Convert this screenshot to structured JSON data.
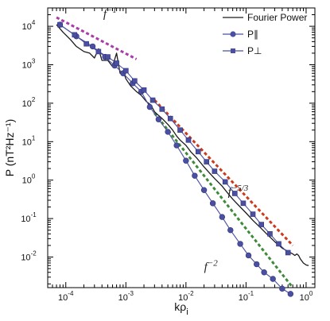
{
  "chart_data": {
    "type": "line",
    "xlabel": "kρ",
    "xlabel_sub": "i",
    "ylabel": "P (nT²Hz⁻¹)",
    "x_scale": "log",
    "y_scale": "log",
    "xlim": [
      5e-05,
      1.4
    ],
    "ylim": [
      0.0016,
      30000
    ],
    "x_tick_labels": [
      {
        "value": 0.0001,
        "base": "10",
        "exp": "-4"
      },
      {
        "value": 0.001,
        "base": "10",
        "exp": "-3"
      },
      {
        "value": 0.01,
        "base": "10",
        "exp": "-2"
      },
      {
        "value": 0.1,
        "base": "10",
        "exp": "-1"
      },
      {
        "value": 1,
        "base": "10",
        "exp": "0"
      }
    ],
    "y_tick_labels": [
      {
        "value": 10000,
        "base": "10",
        "exp": "4"
      },
      {
        "value": 1000,
        "base": "10",
        "exp": "3"
      },
      {
        "value": 100,
        "base": "10",
        "exp": "2"
      },
      {
        "value": 10,
        "base": "10",
        "exp": "1"
      },
      {
        "value": 1,
        "base": "10",
        "exp": "0"
      },
      {
        "value": 0.1,
        "base": "10",
        "exp": "-1"
      },
      {
        "value": 0.01,
        "base": "10",
        "exp": "-2"
      }
    ],
    "legend_position": "top-right",
    "series": [
      {
        "name": "Fourier Power",
        "color": "#1a1a1a",
        "marker": "none",
        "x": [
          7e-05,
          9e-05,
          0.00012,
          0.00015,
          0.0002,
          0.00025,
          0.0003,
          0.00035,
          0.0004,
          0.0005,
          0.0006,
          0.0007,
          0.0008,
          0.0009,
          0.001,
          0.0012,
          0.0015,
          0.0018,
          0.0022,
          0.0026,
          0.003,
          0.0035,
          0.004,
          0.005,
          0.006,
          0.007,
          0.008,
          0.01,
          0.012,
          0.015,
          0.02,
          0.025,
          0.03,
          0.04,
          0.05,
          0.06,
          0.08,
          0.1,
          0.13,
          0.17,
          0.22,
          0.3,
          0.4,
          0.5,
          0.6,
          0.65,
          0.7,
          0.75,
          0.8,
          0.9,
          1.0,
          1.1
        ],
        "values": [
          11000,
          7000,
          4500,
          3000,
          2200,
          2000,
          1500,
          2600,
          1300,
          1300,
          900,
          2000,
          600,
          700,
          430,
          280,
          200,
          160,
          110,
          90,
          60,
          48,
          40,
          28,
          20,
          14,
          11,
          8,
          5.5,
          3.8,
          2.2,
          1.5,
          1.1,
          0.7,
          0.45,
          0.32,
          0.2,
          0.14,
          0.09,
          0.06,
          0.04,
          0.025,
          0.017,
          0.014,
          0.012,
          0.011,
          0.012,
          0.011,
          0.009,
          0.007,
          0.0062,
          0.006
        ]
      },
      {
        "name": "P∥",
        "color": "#4a4fa0",
        "marker": "circle",
        "x": [
          8e-05,
          0.00015,
          0.00028,
          0.00045,
          0.00065,
          0.0009,
          0.0013,
          0.0018,
          0.0025,
          0.0035,
          0.005,
          0.007,
          0.01,
          0.014,
          0.02,
          0.028,
          0.04,
          0.055,
          0.08,
          0.11,
          0.15,
          0.2,
          0.28,
          0.4,
          0.55
        ],
        "values": [
          11000,
          5500,
          3000,
          1600,
          950,
          600,
          330,
          200,
          80,
          38,
          18,
          8,
          3.2,
          1.3,
          0.55,
          0.25,
          0.11,
          0.05,
          0.022,
          0.011,
          0.0065,
          0.004,
          0.0027,
          0.0015,
          0.0011
        ]
      },
      {
        "name": "P⊥",
        "color": "#4a4fa0",
        "marker": "square",
        "x": [
          8e-05,
          0.00014,
          0.00022,
          0.00035,
          0.0005,
          0.0007,
          0.001,
          0.0014,
          0.002,
          0.0028,
          0.004,
          0.0055,
          0.008,
          0.011,
          0.016,
          0.022,
          0.03,
          0.045,
          0.065,
          0.09,
          0.13,
          0.18,
          0.25,
          0.35,
          0.5
        ],
        "values": [
          11000,
          6000,
          3500,
          2200,
          1600,
          1100,
          700,
          380,
          220,
          120,
          70,
          40,
          20,
          11,
          5.5,
          3,
          1.7,
          0.9,
          0.45,
          0.25,
          0.13,
          0.07,
          0.04,
          0.022,
          0.013
        ]
      }
    ],
    "reference_lines": [
      {
        "label_base": "f",
        "label_exp": "−1",
        "color": "#a83ca8",
        "x": [
          7e-05,
          0.0015
        ],
        "values": [
          17000,
          1400
        ],
        "label_x": 0.00042,
        "label_value": 17000
      },
      {
        "label_base": "f",
        "label_exp": "−5/3",
        "color": "#cc3a1e",
        "x": [
          0.003,
          0.6
        ],
        "values": [
          120,
          0.02
        ],
        "label_x": 0.05,
        "label_value": 0.4
      },
      {
        "label_base": "f",
        "label_exp": "−2",
        "color": "#3f8a3a",
        "x": [
          0.003,
          0.6
        ],
        "values": [
          55,
          0.0016
        ],
        "label_x": 0.02,
        "label_value": 0.0045
      }
    ]
  }
}
